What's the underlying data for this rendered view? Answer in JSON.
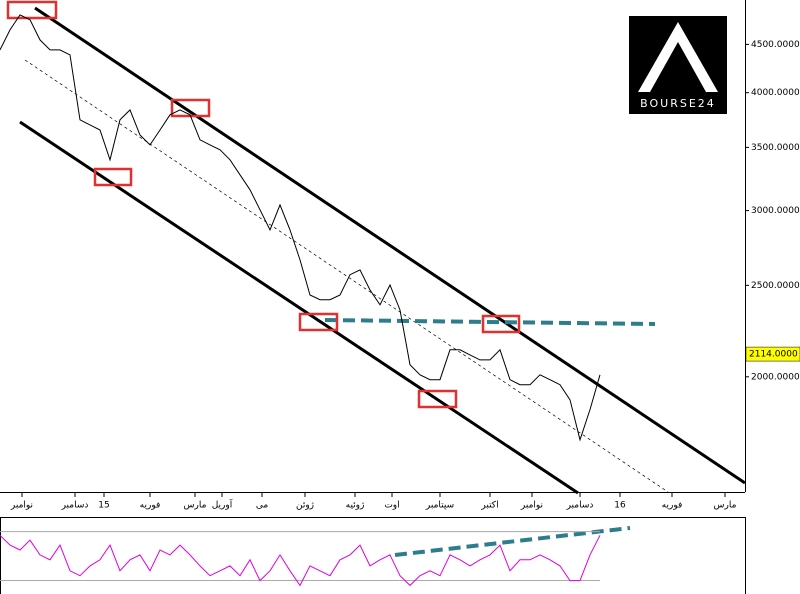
{
  "chart_data": [
    {
      "type": "line",
      "color": "#000000",
      "log_scale": true,
      "x": [
        0,
        1,
        2,
        3,
        4,
        5,
        6,
        7,
        8,
        9,
        10,
        11,
        12,
        13,
        14,
        15,
        16,
        17,
        18,
        19,
        20,
        21,
        22,
        23,
        24,
        25,
        26,
        27,
        28,
        29,
        30,
        31,
        32,
        33,
        34,
        35,
        36,
        37,
        38,
        39,
        40,
        41,
        42,
        43,
        44,
        45,
        46,
        47,
        48,
        49,
        50,
        51,
        52,
        53,
        54,
        55,
        56,
        57,
        58,
        59,
        60
      ],
      "values": [
        4440,
        4662,
        4836,
        4778,
        4550,
        4440,
        4440,
        4386,
        3744,
        3698,
        3652,
        3396,
        3744,
        3836,
        3608,
        3522,
        3652,
        3790,
        3836,
        3790,
        3566,
        3522,
        3480,
        3396,
        3274,
        3156,
        3006,
        2862,
        3042,
        2862,
        2660,
        2442,
        2414,
        2414,
        2442,
        2566,
        2596,
        2472,
        2384,
        2502,
        2354,
        2060,
        2010,
        1986,
        1986,
        2136,
        2136,
        2110,
        2084,
        2084,
        2136,
        1986,
        1962,
        1962,
        2010,
        1986,
        1962,
        1891,
        1715,
        1846,
        2010
      ],
      "xlim": [
        0,
        74.5
      ],
      "xticks": [
        {
          "value": 2.2,
          "label": "نوامبر"
        },
        {
          "value": 7.5,
          "label": "دسامبر"
        },
        {
          "value": 10.4,
          "label": "15"
        },
        {
          "value": 15,
          "label": "فوریه"
        },
        {
          "value": 19.5,
          "label": "مارس"
        },
        {
          "value": 22.2,
          "label": "آوریل"
        },
        {
          "value": 26.2,
          "label": "می"
        },
        {
          "value": 30.5,
          "label": "ژوئن"
        },
        {
          "value": 35.5,
          "label": "ژوئیه"
        },
        {
          "value": 39.2,
          "label": "اوت"
        },
        {
          "value": 44,
          "label": "سپتامبر"
        },
        {
          "value": 49,
          "label": "اکتبر"
        },
        {
          "value": 53.2,
          "label": "نوامبر"
        },
        {
          "value": 58,
          "label": "دسامبر"
        },
        {
          "value": 62,
          "label": "16"
        },
        {
          "value": 67.2,
          "label": "فوریه"
        },
        {
          "value": 72.5,
          "label": "مارس"
        }
      ],
      "ylim": [
        1510,
        5015
      ],
      "yticks": [
        {
          "value": 2000,
          "label": "2000.0000"
        },
        {
          "value": 2500,
          "label": "2500.0000"
        },
        {
          "value": 3000,
          "label": "3000.0000"
        },
        {
          "value": 3500,
          "label": "3500.0000"
        },
        {
          "value": 4000,
          "label": "4000.0000"
        },
        {
          "value": 4500,
          "label": "4500.0000"
        }
      ],
      "price_label": {
        "value": 2114,
        "label": "2114.0000"
      }
    },
    {
      "type": "line",
      "color": "#e000e0",
      "x": [
        0,
        1,
        2,
        3,
        4,
        5,
        6,
        7,
        8,
        9,
        10,
        11,
        12,
        13,
        14,
        15,
        16,
        17,
        18,
        19,
        20,
        21,
        22,
        23,
        24,
        25,
        26,
        27,
        28,
        29,
        30,
        31,
        32,
        33,
        34,
        35,
        36,
        37,
        38,
        39,
        40,
        41,
        42,
        43,
        44,
        45,
        46,
        47,
        48,
        49,
        50,
        51,
        52,
        53,
        54,
        55,
        56,
        57,
        58,
        59,
        60
      ],
      "values": [
        67,
        59,
        55,
        63,
        51,
        47,
        59,
        38,
        34,
        42,
        47,
        59,
        38,
        47,
        51,
        38,
        55,
        51,
        59,
        51,
        42,
        34,
        38,
        42,
        34,
        47,
        30,
        38,
        51,
        38,
        26,
        42,
        38,
        34,
        47,
        51,
        59,
        42,
        47,
        51,
        34,
        26,
        34,
        38,
        34,
        51,
        47,
        42,
        47,
        51,
        59,
        38,
        47,
        47,
        51,
        47,
        42,
        30,
        30,
        51,
        67
      ],
      "xlim": [
        0,
        74.5
      ],
      "ylim": [
        19,
        82
      ],
      "levels": [
        30,
        70
      ]
    }
  ],
  "logo": "BOURSE24"
}
